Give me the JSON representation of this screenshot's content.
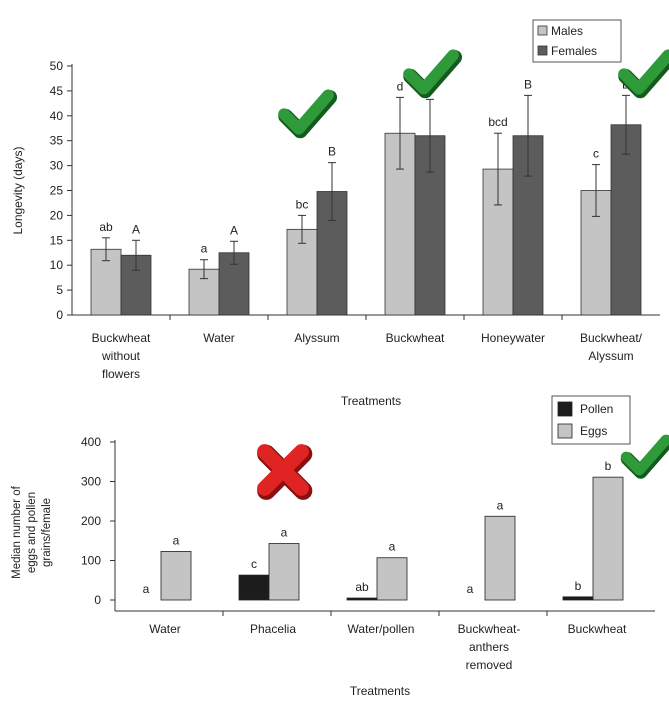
{
  "colors": {
    "males": "#c4c4c4",
    "females": "#5c5c5c",
    "pollen": "#1c1c1c",
    "eggs": "#c4c4c4",
    "check": "#2e9a3a",
    "cross": "#e02424"
  },
  "chart_data": [
    {
      "type": "bar",
      "title": "",
      "xlabel": "Treatments",
      "ylabel": "Longevity (days)",
      "ylim": [
        0,
        50
      ],
      "yticks": [
        0,
        5,
        10,
        15,
        20,
        25,
        30,
        35,
        40,
        45,
        50
      ],
      "legend_position": "top-right",
      "categories": [
        [
          "Buckwheat",
          "without",
          "flowers"
        ],
        [
          "Water"
        ],
        [
          "Alyssum"
        ],
        [
          "Buckwheat"
        ],
        [
          "Honeywater"
        ],
        [
          "Buckwheat/",
          "Alyssum"
        ]
      ],
      "series": [
        {
          "name": "Males",
          "color_key": "males",
          "values": [
            13.2,
            9.2,
            17.2,
            36.5,
            29.3,
            25.0
          ],
          "errors": [
            2.3,
            1.9,
            2.8,
            7.2,
            7.2,
            5.2
          ],
          "labels": [
            "ab",
            "a",
            "bc",
            "d",
            "bcd",
            "c"
          ]
        },
        {
          "name": "Females",
          "color_key": "females",
          "values": [
            12.0,
            12.5,
            24.8,
            36.0,
            36.0,
            38.2
          ],
          "errors": [
            3.0,
            2.3,
            5.8,
            7.3,
            8.1,
            5.9
          ],
          "labels": [
            "A",
            "A",
            "B",
            "B",
            "B",
            "B"
          ]
        }
      ],
      "annotations": [
        {
          "type": "check-icon",
          "category_index": 2
        },
        {
          "type": "check-icon",
          "category_index": 3
        },
        {
          "type": "check-icon",
          "category_index": 5
        }
      ]
    },
    {
      "type": "bar",
      "title": "",
      "xlabel": "Treatments",
      "ylabel": [
        "Median number of",
        "eggs and pollen",
        "grains/female"
      ],
      "ylim": [
        0,
        400
      ],
      "yticks": [
        0,
        100,
        200,
        300,
        400
      ],
      "legend_position": "top-right",
      "categories": [
        [
          "Water"
        ],
        [
          "Phacelia"
        ],
        [
          "Water/pollen"
        ],
        [
          "Buckwheat-",
          "anthers",
          "removed"
        ],
        [
          "Buckwheat"
        ]
      ],
      "series": [
        {
          "name": "Pollen",
          "color_key": "pollen",
          "values": [
            0,
            63,
            5,
            0,
            8
          ],
          "labels": [
            "a",
            "c",
            "ab",
            "a",
            "b"
          ]
        },
        {
          "name": "Eggs",
          "color_key": "eggs",
          "values": [
            123,
            143,
            107,
            212,
            311
          ],
          "labels": [
            "a",
            "a",
            "a",
            "a",
            "b"
          ]
        }
      ],
      "annotations": [
        {
          "type": "cross-icon",
          "category_index": 1
        },
        {
          "type": "check-icon",
          "category_index": 4
        }
      ]
    }
  ]
}
